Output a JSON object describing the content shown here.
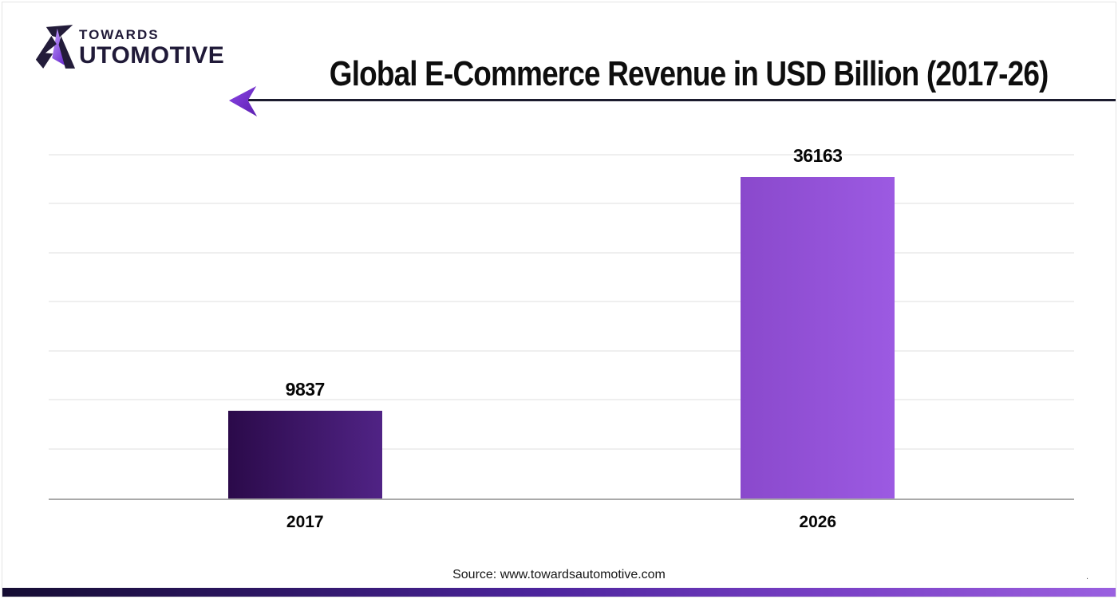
{
  "logo": {
    "towards": "TOWARDS",
    "automotive_rest": "UTOMOTIVE",
    "glyph": "stylized-a-icon",
    "text_color": "#201a38",
    "accent_gradient": [
      "#c7a3ff",
      "#6d2fd0"
    ]
  },
  "header": {
    "title": "Global E-Commerce Revenue in USD Billion (2017-26)"
  },
  "decoration": {
    "arrow_direction": "left",
    "arrow_colors": [
      "#8b45e6",
      "#5c1fb0"
    ],
    "line_color": "#1b1b2e"
  },
  "chart_data": {
    "type": "bar",
    "title": "Global E-Commerce Revenue in USD Billion (2017-26)",
    "categories": [
      "2017",
      "2026"
    ],
    "values": [
      9837,
      36163
    ],
    "xlabel": "",
    "ylabel": "",
    "ylim": [
      0,
      36163
    ],
    "grid": true,
    "gridline_count": 7,
    "legend": "none",
    "bar_gradients": [
      [
        "#2b0a4a",
        "#502385"
      ],
      [
        "#8a49cc",
        "#9c5ae2"
      ]
    ],
    "value_labels_shown": true
  },
  "footer": {
    "source": "Source: www.towardsautomotive.com",
    "stray_mark": ".",
    "bar_gradient": [
      "#150d33",
      "#4c249c",
      "#9a60e0"
    ]
  }
}
